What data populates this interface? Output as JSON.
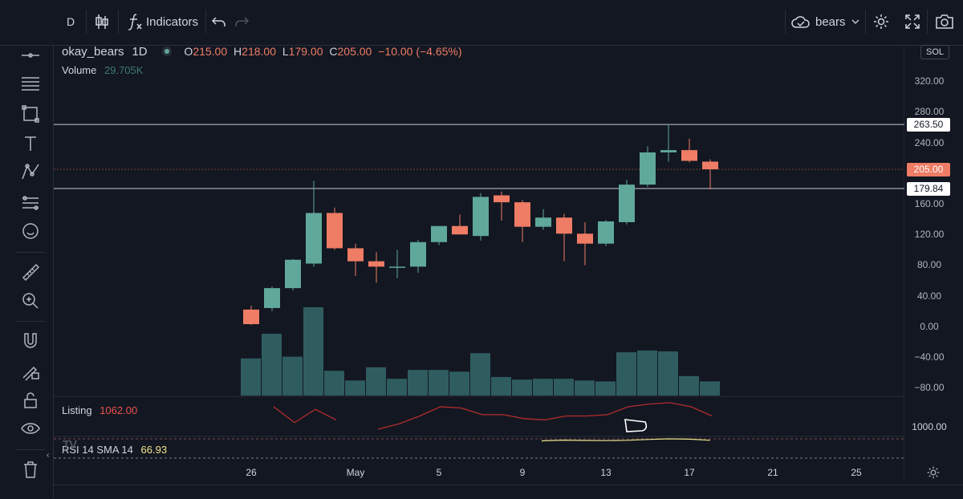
{
  "toolbar": {
    "interval": "D",
    "indicators_label": "Indicators",
    "layout_name": "bears"
  },
  "legend": {
    "symbol": "okay_bears",
    "interval": "1D",
    "o_label": "O",
    "o_value": "215.00",
    "h_label": "H",
    "h_value": "218.00",
    "l_label": "L",
    "l_value": "179.00",
    "c_label": "C",
    "c_value": "205.00",
    "change": "−10.00 (−4.65%)",
    "volume_label": "Volume",
    "volume_value": "29.705K"
  },
  "listing_pane": {
    "label": "Listing",
    "value": "1062.00",
    "axis_label": "1000.00"
  },
  "rsi_pane": {
    "label": "RSI 14 SMA 14",
    "value": "66.93"
  },
  "price_axis": {
    "currency": "SOL",
    "ticks": [
      "320.00",
      "280.00",
      "240.00",
      "160.00",
      "120.00",
      "80.00",
      "40.00",
      "0.00",
      "−40.00",
      "−80.00"
    ],
    "tags": [
      {
        "label": "263.50",
        "value": 263.5
      },
      {
        "label": "205.00",
        "value": 205.0
      },
      {
        "label": "179.84",
        "value": 179.84
      }
    ]
  },
  "colors": {
    "up": "#5fa89a",
    "down": "#ef7c64",
    "volume": "#2f5d5f",
    "bg": "#131722"
  },
  "chart_data": {
    "type": "candlestick",
    "dates": [
      "Apr 26",
      "Apr 27",
      "Apr 28",
      "Apr 29",
      "Apr 30",
      "May 1",
      "May 2",
      "May 3",
      "May 4",
      "May 5",
      "May 6",
      "May 7",
      "May 8",
      "May 9",
      "May 10",
      "May 11",
      "May 12",
      "May 13",
      "May 14",
      "May 15",
      "May 16",
      "May 17",
      "May 18"
    ],
    "candles": [
      {
        "o": 22,
        "h": 27,
        "l": 2,
        "c": 3
      },
      {
        "o": 24,
        "h": 52,
        "l": 20,
        "c": 50
      },
      {
        "o": 50,
        "h": 88,
        "l": 47,
        "c": 87
      },
      {
        "o": 82,
        "h": 190,
        "l": 78,
        "c": 148
      },
      {
        "o": 148,
        "h": 155,
        "l": 100,
        "c": 102
      },
      {
        "o": 102,
        "h": 108,
        "l": 66,
        "c": 85
      },
      {
        "o": 85,
        "h": 97,
        "l": 57,
        "c": 78
      },
      {
        "o": 78,
        "h": 100,
        "l": 63,
        "c": 78
      },
      {
        "o": 78,
        "h": 113,
        "l": 70,
        "c": 110
      },
      {
        "o": 110,
        "h": 130,
        "l": 106,
        "c": 131
      },
      {
        "o": 131,
        "h": 146,
        "l": 121,
        "c": 120
      },
      {
        "o": 118,
        "h": 174,
        "l": 112,
        "c": 169
      },
      {
        "o": 171,
        "h": 176,
        "l": 138,
        "c": 162
      },
      {
        "o": 162,
        "h": 165,
        "l": 110,
        "c": 130
      },
      {
        "o": 130,
        "h": 153,
        "l": 126,
        "c": 142
      },
      {
        "o": 142,
        "h": 147,
        "l": 85,
        "c": 121
      },
      {
        "o": 121,
        "h": 136,
        "l": 80,
        "c": 108
      },
      {
        "o": 108,
        "h": 139,
        "l": 105,
        "c": 137
      },
      {
        "o": 136,
        "h": 191,
        "l": 133,
        "c": 185
      },
      {
        "o": 185,
        "h": 235,
        "l": 182,
        "c": 227
      },
      {
        "o": 227,
        "h": 264,
        "l": 215,
        "c": 230
      },
      {
        "o": 230,
        "h": 245,
        "l": 214,
        "c": 216
      },
      {
        "o": 215,
        "h": 218,
        "l": 179,
        "c": 205
      }
    ],
    "volume_rel": [
      0.42,
      0.7,
      0.44,
      1.0,
      0.28,
      0.17,
      0.32,
      0.19,
      0.29,
      0.29,
      0.27,
      0.48,
      0.21,
      0.18,
      0.19,
      0.19,
      0.17,
      0.16,
      0.49,
      0.51,
      0.5,
      0.22,
      0.16
    ],
    "listing": [
      null,
      0.85,
      0.25,
      0.75,
      0.35,
      null,
      0.0,
      0.2,
      0.5,
      0.85,
      0.8,
      0.55,
      0.55,
      0.4,
      0.35,
      0.5,
      0.5,
      0.55,
      0.85,
      0.95,
      1.0,
      0.85,
      0.5
    ],
    "rsi": [
      null,
      null,
      null,
      null,
      null,
      null,
      null,
      null,
      null,
      null,
      null,
      null,
      null,
      null,
      0.6,
      0.4,
      0.5,
      0.55,
      0.45,
      0.2,
      0.0,
      0.1,
      0.45
    ],
    "price_range": [
      -88,
      340
    ],
    "x_ticks": [
      {
        "label": "26",
        "index": 0
      },
      {
        "label": "May",
        "index": 5
      },
      {
        "label": "5",
        "index": 9
      },
      {
        "label": "9",
        "index": 13
      },
      {
        "label": "13",
        "index": 17
      },
      {
        "label": "17",
        "index": 21
      },
      {
        "label": "21",
        "index": 25
      },
      {
        "label": "25",
        "index": 29
      }
    ]
  }
}
